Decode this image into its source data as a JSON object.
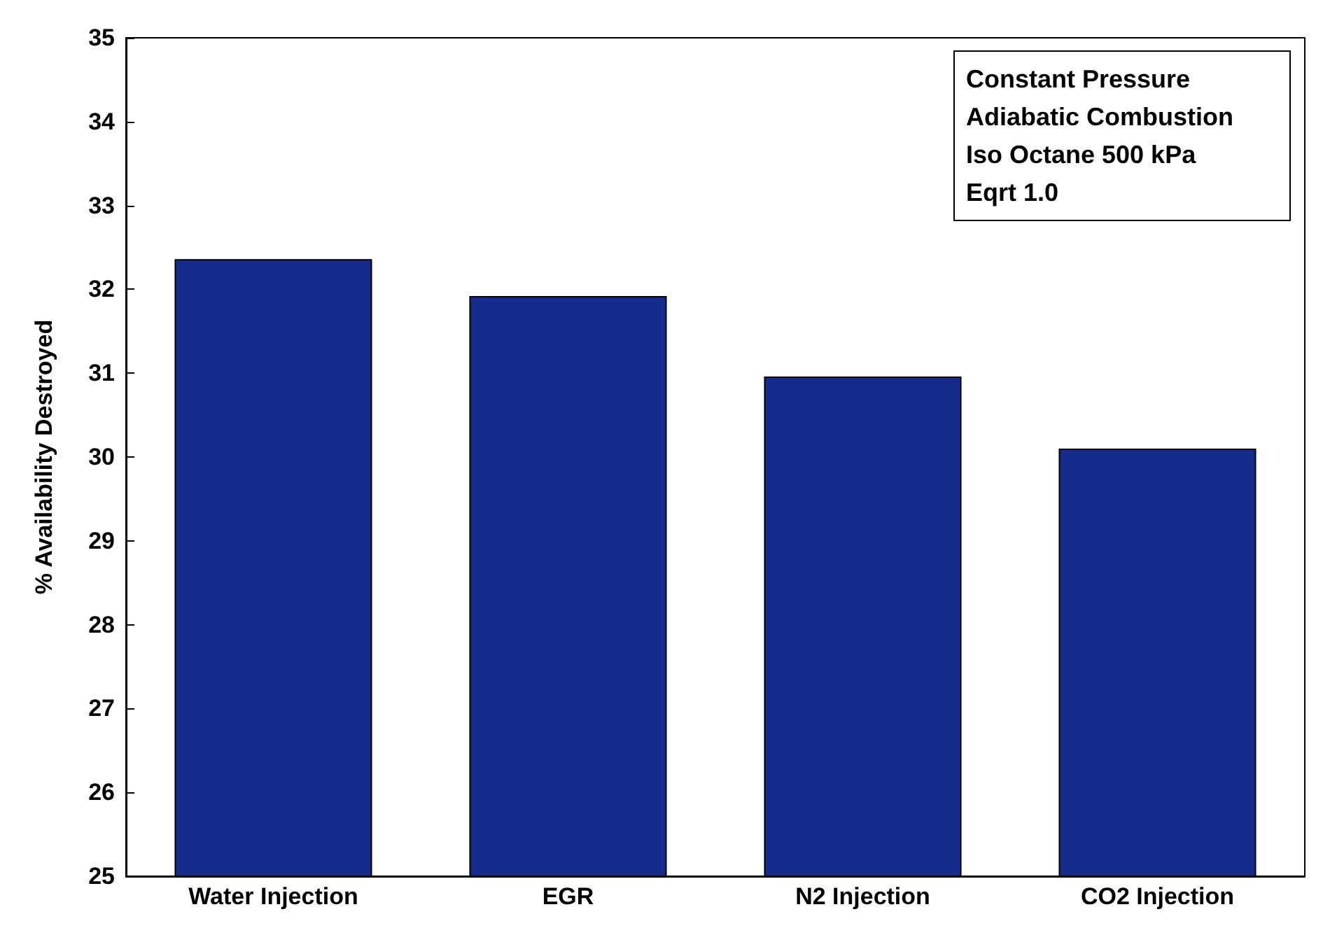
{
  "chart_data": {
    "type": "bar",
    "ylabel": "% Availability Destroyed",
    "categories": [
      "Water Injection",
      "EGR",
      "N2 Injection",
      "CO2 Injection"
    ],
    "values": [
      32.36,
      31.92,
      30.96,
      30.1
    ],
    "color": "#162b8c",
    "ylim": [
      25,
      35
    ],
    "yticks": [
      25,
      26,
      27,
      28,
      29,
      30,
      31,
      32,
      33,
      34,
      35
    ],
    "grid": false,
    "annotations": [
      "Constant Pressure\nAdiabatic Combustion\nIso Octane 500 kPa\nEqrt 1.0"
    ]
  }
}
